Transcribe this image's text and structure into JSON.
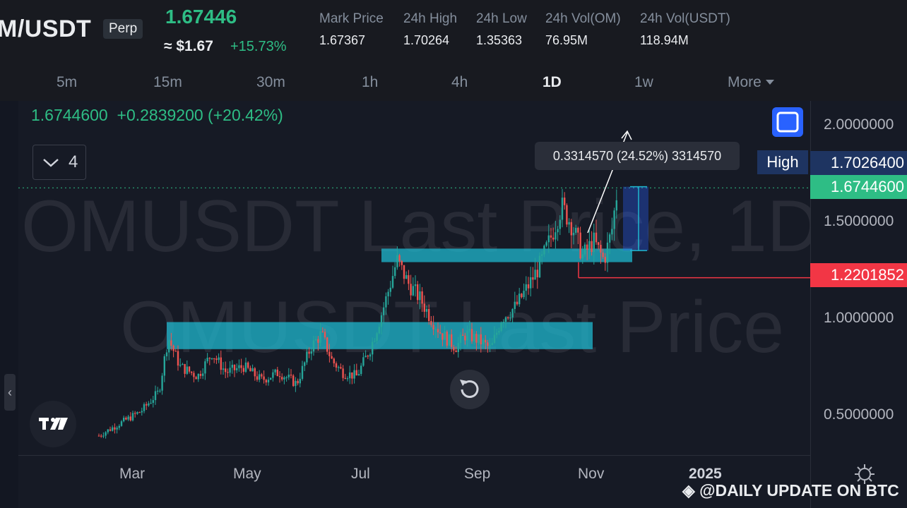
{
  "header": {
    "symbol": "M/USDT",
    "perp_label": "Perp",
    "price": "1.67446",
    "usd_price": "≈ $1.67",
    "change": "+15.73%",
    "stats": [
      {
        "label": "Mark Price",
        "value": "1.67367"
      },
      {
        "label": "24h High",
        "value": "1.70264"
      },
      {
        "label": "24h Low",
        "value": "1.35363"
      },
      {
        "label": "24h Vol(OM)",
        "value": "76.95M"
      },
      {
        "label": "24h Vol(USDT)",
        "value": "118.94M"
      }
    ]
  },
  "timeframes": {
    "items": [
      "5m",
      "15m",
      "30m",
      "1h",
      "4h",
      "1D",
      "1w"
    ],
    "active": "1D",
    "more_label": "More"
  },
  "chart": {
    "legend_price": "1.6744600",
    "legend_change": "+0.2839200 (+20.42%)",
    "collapse_count": "4",
    "watermark_line1": "OMUSDT Last Price, 1D",
    "watermark_line2": "OMUSDT Last Price",
    "tooltip": "0.3314570 (24.52%) 3314570",
    "high_label": "High",
    "y_axis": {
      "ticks": [
        "2.0000000",
        "1.5000000",
        "1.0000000",
        "0.5000000"
      ],
      "high_value": "1.7026400",
      "last_value": "1.6744600",
      "line_value": "1.2201852"
    },
    "x_axis": [
      "Mar",
      "May",
      "Jul",
      "Sep",
      "Nov",
      "2025"
    ],
    "colors": {
      "up": "#26a69a",
      "down": "#ef5350",
      "zone": "#1fb8cf",
      "last": "#2ebd85"
    }
  },
  "footer": {
    "credit": "@DAILY UPDATE ON BTC"
  },
  "chart_data": {
    "type": "candlestick",
    "x_axis_labels": [
      "Mar",
      "May",
      "Jul",
      "Sep",
      "Nov",
      "2025"
    ],
    "y_axis_labels": [
      "0.5000000",
      "1.0000000",
      "1.5000000",
      "2.0000000"
    ],
    "ylim": [
      0.3,
      2.15
    ],
    "last_price": 1.67446,
    "high": 1.70264,
    "horizontal_line": 1.2201852,
    "zones": [
      {
        "from": 1.29,
        "to": 1.36
      },
      {
        "from": 0.84,
        "to": 0.98
      }
    ],
    "measure": {
      "from": 1.35,
      "to": 1.68,
      "text": "0.3314570 (24.52%) 3314570"
    }
  }
}
